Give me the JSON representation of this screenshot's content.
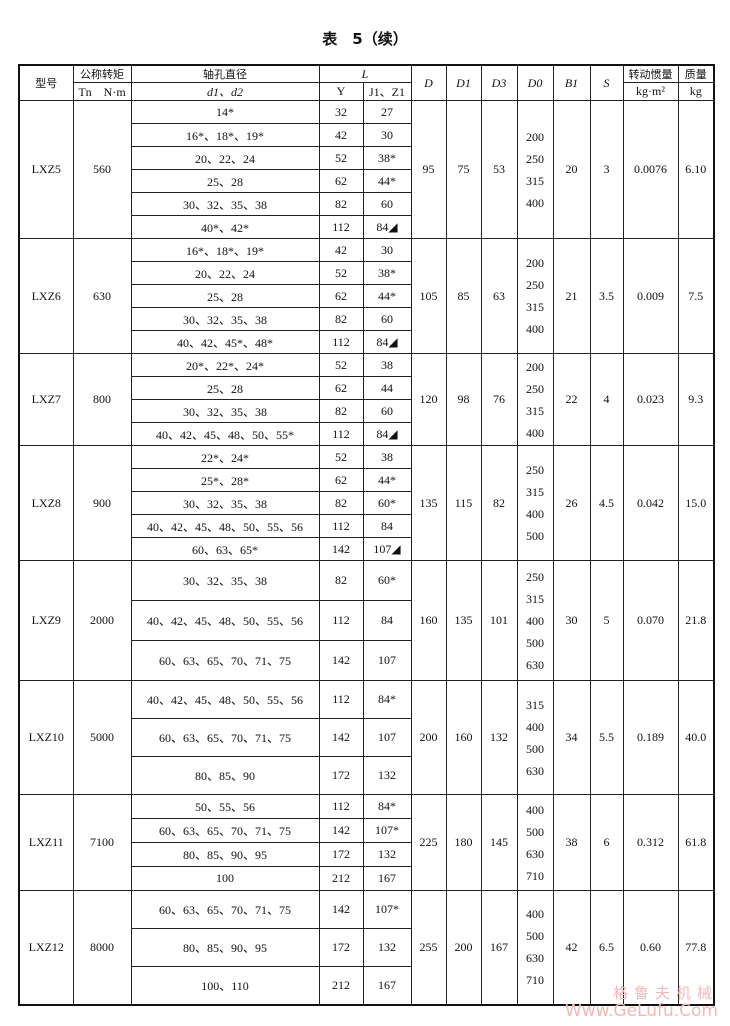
{
  "title": "表　5（续）",
  "headers": {
    "model": "型号",
    "torque": "公称转矩",
    "torque_unit": "Tn　N·m",
    "bore": "轴孔直径",
    "bore_sub": "d1、d2",
    "L": "L",
    "Y": "Y",
    "JZ": "J1、Z1",
    "D": "D",
    "D1": "D1",
    "D3": "D3",
    "D0": "D0",
    "B1": "B1",
    "S": "S",
    "inertia": "转动惯量",
    "inertia_unit": "kg·m²",
    "mass": "质量",
    "mass_unit": "kg"
  },
  "models": [
    {
      "model": "LXZ5",
      "torque": "560",
      "D": "95",
      "D1": "75",
      "D3": "53",
      "D0": [
        "200",
        "250",
        "315",
        "400"
      ],
      "B1": "20",
      "S": "3",
      "inertia": "0.0076",
      "mass": "6.10",
      "rows": [
        [
          "14*",
          "32",
          "27"
        ],
        [
          "16*、18*、19*",
          "42",
          "30"
        ],
        [
          "20、22、24",
          "52",
          "38*"
        ],
        [
          "25、28",
          "62",
          "44*"
        ],
        [
          "30、32、35、38",
          "82",
          "60"
        ],
        [
          "40*、42*",
          "112",
          "84◢"
        ]
      ]
    },
    {
      "model": "LXZ6",
      "torque": "630",
      "D": "105",
      "D1": "85",
      "D3": "63",
      "D0": [
        "200",
        "250",
        "315",
        "400"
      ],
      "B1": "21",
      "S": "3.5",
      "inertia": "0.009",
      "mass": "7.5",
      "rows": [
        [
          "16*、18*、19*",
          "42",
          "30"
        ],
        [
          "20、22、24",
          "52",
          "38*"
        ],
        [
          "25、28",
          "62",
          "44*"
        ],
        [
          "30、32、35、38",
          "82",
          "60"
        ],
        [
          "40、42、45*、48*",
          "112",
          "84◢"
        ]
      ]
    },
    {
      "model": "LXZ7",
      "torque": "800",
      "D": "120",
      "D1": "98",
      "D3": "76",
      "D0": [
        "200",
        "250",
        "315",
        "400"
      ],
      "B1": "22",
      "S": "4",
      "inertia": "0.023",
      "mass": "9.3",
      "rows": [
        [
          "20*、22*、24*",
          "52",
          "38"
        ],
        [
          "25、28",
          "62",
          "44"
        ],
        [
          "30、32、35、38",
          "82",
          "60"
        ],
        [
          "40、42、45、48、50、55*",
          "112",
          "84◢"
        ]
      ]
    },
    {
      "model": "LXZ8",
      "torque": "900",
      "D": "135",
      "D1": "115",
      "D3": "82",
      "D0": [
        "250",
        "315",
        "400",
        "500"
      ],
      "B1": "26",
      "S": "4.5",
      "inertia": "0.042",
      "mass": "15.0",
      "rows": [
        [
          "22*、24*",
          "52",
          "38"
        ],
        [
          "25*、28*",
          "62",
          "44*"
        ],
        [
          "30、32、35、38",
          "82",
          "60*"
        ],
        [
          "40、42、45、48、50、55、56",
          "112",
          "84"
        ],
        [
          "60、63、65*",
          "142",
          "107◢"
        ]
      ]
    },
    {
      "model": "LXZ9",
      "torque": "2000",
      "D": "160",
      "D1": "135",
      "D3": "101",
      "D0": [
        "250",
        "315",
        "400",
        "500",
        "630"
      ],
      "B1": "30",
      "S": "5",
      "inertia": "0.070",
      "mass": "21.8",
      "rows": [
        [
          "30、32、35、38",
          "82",
          "60*"
        ],
        [
          "40、42、45、48、50、55、56",
          "112",
          "84"
        ],
        [
          "60、63、65、70、71、75",
          "142",
          "107"
        ]
      ]
    },
    {
      "model": "LXZ10",
      "torque": "5000",
      "D": "200",
      "D1": "160",
      "D3": "132",
      "D0": [
        "315",
        "400",
        "500",
        "630"
      ],
      "B1": "34",
      "S": "5.5",
      "inertia": "0.189",
      "mass": "40.0",
      "rows": [
        [
          "40、42、45、48、50、55、56",
          "112",
          "84*"
        ],
        [
          "60、63、65、70、71、75",
          "142",
          "107"
        ],
        [
          "80、85、90",
          "172",
          "132"
        ]
      ]
    },
    {
      "model": "LXZ11",
      "torque": "7100",
      "D": "225",
      "D1": "180",
      "D3": "145",
      "D0": [
        "400",
        "500",
        "630",
        "710"
      ],
      "B1": "38",
      "S": "6",
      "inertia": "0.312",
      "mass": "61.8",
      "rows": [
        [
          "50、55、56",
          "112",
          "84*"
        ],
        [
          "60、63、65、70、71、75",
          "142",
          "107*"
        ],
        [
          "80、85、90、95",
          "172",
          "132"
        ],
        [
          "100",
          "212",
          "167"
        ]
      ]
    },
    {
      "model": "LXZ12",
      "torque": "8000",
      "D": "255",
      "D1": "200",
      "D3": "167",
      "D0": [
        "400",
        "500",
        "630",
        "710"
      ],
      "B1": "42",
      "S": "6.5",
      "inertia": "0.60",
      "mass": "77.8",
      "rows": [
        [
          "60、63、65、70、71、75",
          "142",
          "107*"
        ],
        [
          "80、85、90、95",
          "172",
          "132"
        ],
        [
          "100、110",
          "212",
          "167"
        ]
      ]
    }
  ],
  "watermark": {
    "line1": "格鲁夫机械",
    "line2": "Www.GeLufu.Com"
  }
}
